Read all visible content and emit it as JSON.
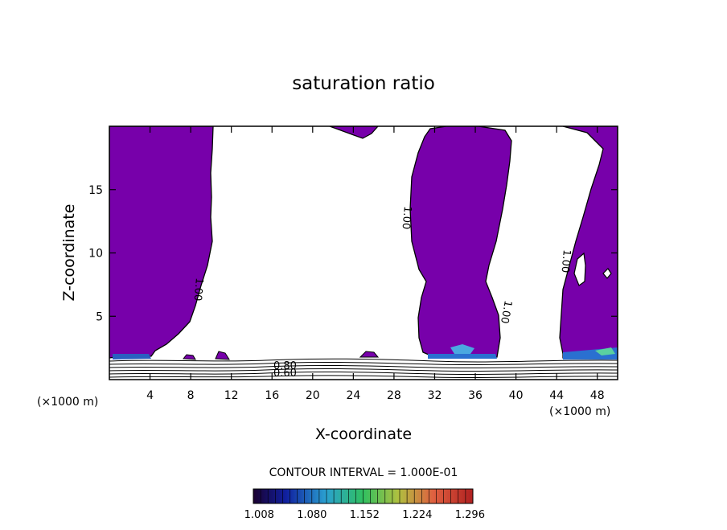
{
  "chart_data": {
    "type": "contour",
    "title": "saturation ratio",
    "xlabel": "X-coordinate",
    "ylabel": "Z-coordinate",
    "x_unit": "(×1000 m)",
    "x_unit_right": "(×1000 m)",
    "xlim": [
      0,
      50
    ],
    "ylim": [
      0,
      20
    ],
    "x_ticks": [
      4,
      8,
      12,
      16,
      20,
      24,
      28,
      32,
      36,
      40,
      44,
      48
    ],
    "y_ticks": [
      5,
      10,
      15
    ],
    "contour_interval_text": "CONTOUR INTERVAL = 1.000E-01",
    "contour_line_labels": [
      "1.00",
      "1.00",
      "1.00",
      "1.00",
      "0.80",
      "0.60"
    ],
    "colorbar": {
      "tick_labels": [
        "1.008",
        "1.080",
        "1.152",
        "1.224",
        "1.296"
      ],
      "range": [
        1.0,
        1.3
      ]
    },
    "grid": false,
    "colors": {
      "saturated_fill": "#7700aa",
      "colorbar_stops": [
        "#1a0030",
        "#1020a0",
        "#2aa0d0",
        "#30c060",
        "#c0c040",
        "#e06040",
        "#b02020"
      ]
    }
  }
}
